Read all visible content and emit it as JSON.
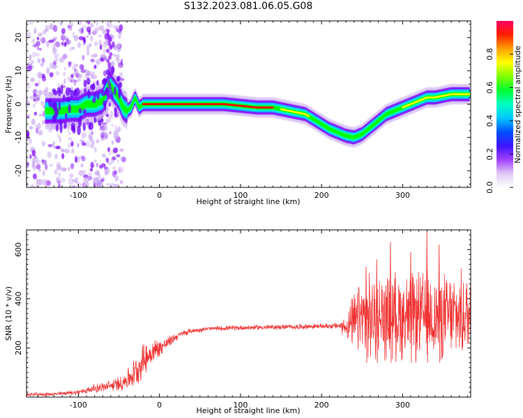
{
  "title": "S132.2023.081.06.05.G08",
  "colors": {
    "snr_line": "#f03232",
    "axis": "#000000"
  },
  "chart_data": [
    {
      "type": "heatmap",
      "title": "S132.2023.081.06.05.G08",
      "xlabel": "Height of straight line (km)",
      "ylabel": "Frequency (Hz)",
      "xlim": [
        -164,
        384
      ],
      "ylim": [
        -25,
        25
      ],
      "xticks": [
        -100,
        0,
        100,
        200,
        300
      ],
      "xtick_labels": [
        "-100",
        "0",
        "100",
        "200",
        "300"
      ],
      "yticks": [
        -20,
        -10,
        0,
        10,
        20
      ],
      "ytick_labels": [
        "-20",
        "-10",
        "0",
        "10",
        "20"
      ],
      "colorbar": {
        "label": "Normalized spectral amplitude",
        "range": [
          0,
          1
        ],
        "ticks": [
          0.0,
          0.2,
          0.4,
          0.6,
          0.8
        ],
        "tick_labels": [
          "0.0",
          "0.2",
          "0.4",
          "0.6",
          "0.8"
        ],
        "colormap": [
          "#e8d6f7",
          "#c9a8f0",
          "#7a00ff",
          "#1e1eff",
          "#00cfff",
          "#00ffb0",
          "#00ff00",
          "#c8ff00",
          "#ffff00",
          "#ff8c00",
          "#ff0000",
          "#ff0060"
        ]
      },
      "ridge": {
        "x": [
          -135,
          -120,
          -110,
          -100,
          -90,
          -80,
          -70,
          -62,
          -56,
          -50,
          -45,
          -40,
          -35,
          -30,
          -25,
          -20,
          -10,
          0,
          20,
          40,
          60,
          80,
          100,
          120,
          140,
          150,
          160,
          170,
          180,
          190,
          200,
          210,
          220,
          230,
          240,
          250,
          260,
          270,
          280,
          290,
          300,
          310,
          320,
          330,
          340,
          350,
          360,
          370,
          380
        ],
        "y": [
          -2,
          -2,
          -1.5,
          -1.5,
          0,
          0,
          1,
          6,
          4,
          2,
          -1,
          -2,
          -1,
          2,
          -1,
          0,
          0,
          0,
          0,
          0,
          0,
          0,
          -0.5,
          -1,
          -1,
          -1.5,
          -2,
          -2.5,
          -3,
          -4.5,
          -6,
          -7.5,
          -8.5,
          -9.5,
          -10,
          -9,
          -7,
          -5,
          -3,
          -2,
          -1,
          0,
          1,
          2,
          2,
          2.5,
          3,
          3,
          3
        ]
      }
    },
    {
      "type": "line",
      "xlabel": "Height of straight line (km)",
      "ylabel": "SNR (10 * v/v)",
      "xlim": [
        -164,
        384
      ],
      "ylim": [
        0,
        680
      ],
      "xticks": [
        -100,
        0,
        100,
        200,
        300
      ],
      "xtick_labels": [
        "-100",
        "0",
        "100",
        "200",
        "300"
      ],
      "yticks": [
        200,
        400,
        600
      ],
      "ytick_labels": [
        "200",
        "400",
        "600"
      ],
      "envelope": {
        "x": [
          -164,
          -130,
          -100,
          -80,
          -60,
          -50,
          -40,
          -30,
          -20,
          -10,
          0,
          10,
          20,
          30,
          40,
          60,
          100,
          150,
          200,
          220,
          230,
          240,
          250,
          260,
          280,
          300,
          320,
          340,
          360,
          384
        ],
        "mean": [
          10,
          12,
          20,
          35,
          45,
          55,
          70,
          100,
          150,
          180,
          200,
          220,
          245,
          260,
          270,
          278,
          282,
          285,
          288,
          290,
          285,
          300,
          320,
          320,
          330,
          330,
          330,
          330,
          330,
          330
        ],
        "spread": [
          8,
          8,
          12,
          20,
          28,
          35,
          50,
          70,
          80,
          65,
          45,
          30,
          20,
          15,
          12,
          10,
          12,
          12,
          12,
          15,
          50,
          140,
          190,
          200,
          200,
          210,
          210,
          210,
          200,
          200
        ]
      },
      "spikes": [
        {
          "x": 285,
          "y": 630
        },
        {
          "x": 330,
          "y": 675
        },
        {
          "x": 345,
          "y": 620
        },
        {
          "x": 310,
          "y": 590
        },
        {
          "x": 268,
          "y": 560
        },
        {
          "x": 255,
          "y": 530
        }
      ]
    }
  ]
}
